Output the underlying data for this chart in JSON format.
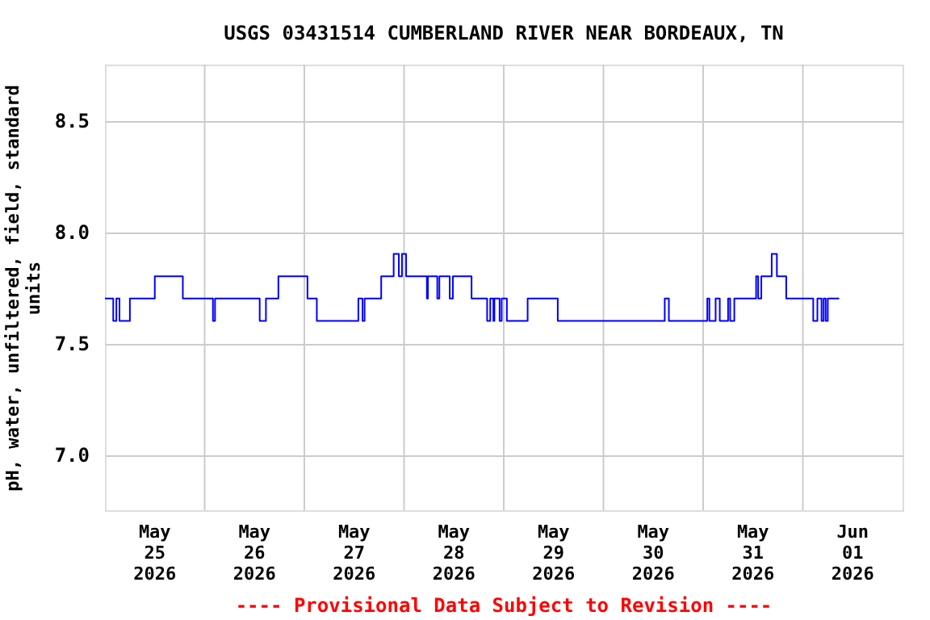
{
  "chart_data": {
    "type": "step",
    "title": "USGS 03431514 CUMBERLAND RIVER NEAR BORDEAUX, TN",
    "ylabel": "pH, water, unfiltered, field, standard units",
    "annotations": [
      "---- Provisional Data Subject to Revision ----"
    ],
    "x": [
      "2026-05-25T00:00",
      "2026-05-25T02:00",
      "2026-05-25T02:45",
      "2026-05-25T03:30",
      "2026-05-25T06:00",
      "2026-05-25T12:00",
      "2026-05-25T18:45",
      "2026-05-26T02:00",
      "2026-05-26T02:30",
      "2026-05-26T13:15",
      "2026-05-26T14:45",
      "2026-05-26T17:45",
      "2026-05-27T00:45",
      "2026-05-27T03:00",
      "2026-05-27T13:00",
      "2026-05-27T14:00",
      "2026-05-27T14:30",
      "2026-05-27T18:30",
      "2026-05-27T21:30",
      "2026-05-27T22:45",
      "2026-05-27T23:30",
      "2026-05-28T00:30",
      "2026-05-28T05:30",
      "2026-05-28T05:45",
      "2026-05-28T08:00",
      "2026-05-28T08:30",
      "2026-05-28T11:00",
      "2026-05-28T11:45",
      "2026-05-28T16:15",
      "2026-05-28T20:00",
      "2026-05-28T20:45",
      "2026-05-28T21:30",
      "2026-05-28T21:45",
      "2026-05-28T23:00",
      "2026-05-28T23:30",
      "2026-05-29T00:45",
      "2026-05-29T05:45",
      "2026-05-29T13:00",
      "2026-05-30T14:45",
      "2026-05-30T15:45",
      "2026-05-31T01:00",
      "2026-05-31T01:30",
      "2026-05-31T03:00",
      "2026-05-31T04:00",
      "2026-05-31T06:00",
      "2026-05-31T06:30",
      "2026-05-31T07:30",
      "2026-05-31T12:45",
      "2026-05-31T13:15",
      "2026-05-31T14:00",
      "2026-05-31T16:30",
      "2026-05-31T17:45",
      "2026-05-31T20:00",
      "2026-06-01T02:30",
      "2026-06-01T03:30",
      "2026-06-01T04:30",
      "2026-06-01T05:00",
      "2026-06-01T05:30",
      "2026-06-01T06:00",
      "2026-06-01T08:45"
    ],
    "series": [
      {
        "color": "#0000ff",
        "values": [
          7.7,
          7.6,
          7.7,
          7.6,
          7.7,
          7.8,
          7.7,
          7.6,
          7.7,
          7.6,
          7.7,
          7.8,
          7.7,
          7.6,
          7.7,
          7.6,
          7.7,
          7.8,
          7.9,
          7.8,
          7.9,
          7.8,
          7.7,
          7.8,
          7.7,
          7.8,
          7.7,
          7.8,
          7.7,
          7.6,
          7.7,
          7.6,
          7.7,
          7.6,
          7.7,
          7.6,
          7.7,
          7.6,
          7.7,
          7.6,
          7.7,
          7.6,
          7.7,
          7.6,
          7.7,
          7.6,
          7.7,
          7.8,
          7.7,
          7.8,
          7.9,
          7.8,
          7.7,
          7.6,
          7.7,
          7.6,
          7.7,
          7.6,
          7.7,
          7.7
        ]
      }
    ],
    "xlim": [
      "2026-05-25T00:00",
      "2026-06-02T00:00"
    ],
    "xticks": [
      {
        "value": "2026-05-25T12:00",
        "label": "May\n25\n2026"
      },
      {
        "value": "2026-05-26T12:00",
        "label": "May\n26\n2026"
      },
      {
        "value": "2026-05-27T12:00",
        "label": "May\n27\n2026"
      },
      {
        "value": "2026-05-28T12:00",
        "label": "May\n28\n2026"
      },
      {
        "value": "2026-05-29T12:00",
        "label": "May\n29\n2026"
      },
      {
        "value": "2026-05-30T12:00",
        "label": "May\n30\n2026"
      },
      {
        "value": "2026-05-31T12:00",
        "label": "May\n31\n2026"
      },
      {
        "value": "2026-06-01T12:00",
        "label": "Jun\n01\n2026"
      },
      {
        "value": "2026-05-26T00:00",
        "label": null
      },
      {
        "value": "2026-05-27T00:00",
        "label": null
      },
      {
        "value": "2026-05-28T00:00",
        "label": null
      },
      {
        "value": "2026-05-29T00:00",
        "label": null
      },
      {
        "value": "2026-05-30T00:00",
        "label": null
      },
      {
        "value": "2026-05-31T00:00",
        "label": null
      },
      {
        "value": "2026-06-01T00:00",
        "label": null
      }
    ],
    "ylim": [
      6.75,
      8.75
    ],
    "yticks": [
      {
        "value": 7,
        "label": "7.0"
      },
      7.5,
      {
        "value": 8,
        "label": "8.0"
      },
      8.5
    ],
    "grid": true,
    "line_style": "solid"
  }
}
